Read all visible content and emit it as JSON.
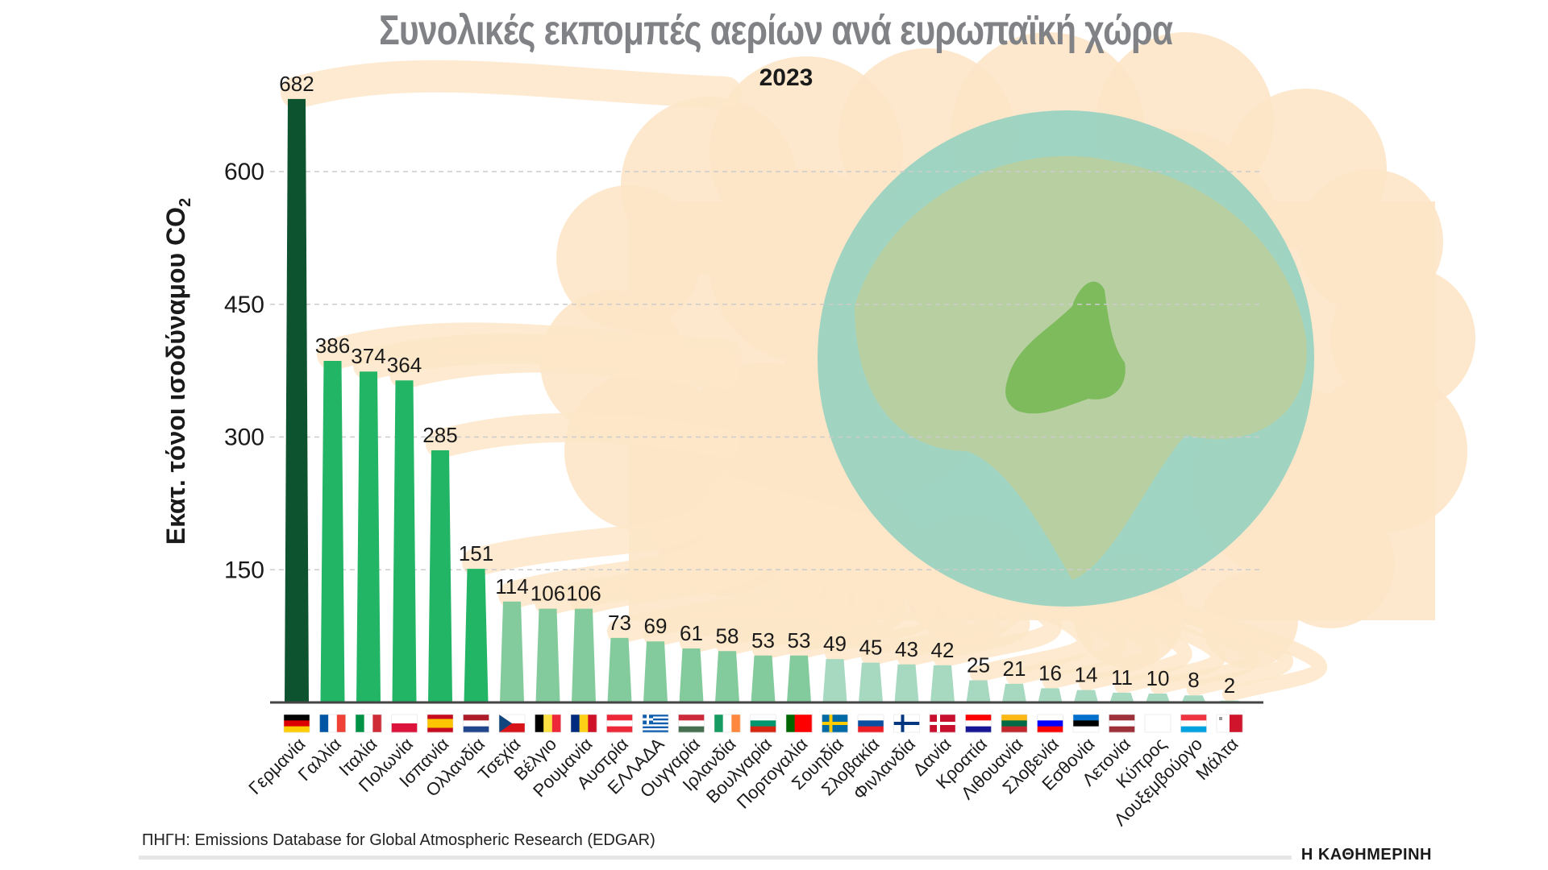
{
  "title": "Συνολικές εκπομπές αερίων ανά ευρωπαϊκή χώρα",
  "subtitle": "2023",
  "source": "ΠΗΓΗ: Emissions Database for Global Atmospheric Research (EDGAR)",
  "logo": "Η ΚΑΘΗΜΕΡΙΝΗ",
  "colors": {
    "dark": "#0e5330",
    "bright": "#22b566",
    "medium": "#83cb9c",
    "light": "#a6d9c0",
    "cloud": "#fde6c8",
    "ocean": "#8fd0c0",
    "land": "#b9cfa0",
    "eu": "#7dbb5c"
  },
  "chart_data": {
    "type": "bar",
    "title": "Συνολικές εκπομπές αερίων ανά ευρωπαϊκή χώρα",
    "subtitle": "2023",
    "ylabel": "Εκατ. τόνοι ισοδύναμου CO",
    "ylabel_sub": "2",
    "ylim": [
      0,
      700
    ],
    "yticks": [
      150,
      300,
      450,
      600
    ],
    "grid": true,
    "categories": [
      "Γερμανία",
      "Γαλλία",
      "Ιταλία",
      "Πολωνία",
      "Ισπανία",
      "Ολλανδία",
      "Τσεχία",
      "Βέλγιο",
      "Ρουμανία",
      "Αυστρία",
      "ΕΛΛΑΔΑ",
      "Ουγγαρία",
      "Ιρλανδία",
      "Βουλγαρία",
      "Πορτογαλία",
      "Σουηδία",
      "Σλοβακία",
      "Φινλανδία",
      "Δανία",
      "Κροατία",
      "Λιθουανία",
      "Σλοβενία",
      "Εσθονία",
      "Λετονία",
      "Κύπρος",
      "Λουξεμβούργο",
      "Μάλτα"
    ],
    "values": [
      682,
      386,
      374,
      364,
      285,
      151,
      114,
      106,
      106,
      73,
      69,
      61,
      58,
      53,
      53,
      49,
      45,
      43,
      42,
      25,
      21,
      16,
      14,
      11,
      10,
      8,
      2
    ],
    "tiers": [
      "dark",
      "bright",
      "bright",
      "bright",
      "bright",
      "bright",
      "medium",
      "medium",
      "medium",
      "medium",
      "medium",
      "medium",
      "medium",
      "medium",
      "medium",
      "light",
      "light",
      "light",
      "light",
      "light",
      "light",
      "light",
      "light",
      "light",
      "light",
      "light",
      "light"
    ],
    "flags": [
      {
        "o": "h",
        "c": [
          "#000000",
          "#dd0000",
          "#ffce00"
        ]
      },
      {
        "o": "v",
        "c": [
          "#0055a4",
          "#ffffff",
          "#ef4135"
        ]
      },
      {
        "o": "v",
        "c": [
          "#009246",
          "#ffffff",
          "#ce2b37"
        ]
      },
      {
        "o": "h",
        "c": [
          "#ffffff",
          "#dc143c"
        ]
      },
      {
        "o": "h",
        "c": [
          "#c60b1e",
          "#ffc400",
          "#ffc400",
          "#c60b1e"
        ]
      },
      {
        "o": "h",
        "c": [
          "#ae1c28",
          "#ffffff",
          "#21468b"
        ]
      },
      {
        "o": "h",
        "c": [
          "#ffffff",
          "#d7141a"
        ],
        "tri": "#11457e"
      },
      {
        "o": "v",
        "c": [
          "#000000",
          "#fae042",
          "#ed2939"
        ]
      },
      {
        "o": "v",
        "c": [
          "#002b7f",
          "#fcd116",
          "#ce1126"
        ]
      },
      {
        "o": "h",
        "c": [
          "#ed2939",
          "#ffffff",
          "#ed2939"
        ]
      },
      {
        "o": "h",
        "c": [
          "#0d5eaf",
          "#ffffff",
          "#0d5eaf",
          "#ffffff",
          "#0d5eaf",
          "#ffffff",
          "#0d5eaf",
          "#ffffff",
          "#0d5eaf"
        ],
        "cross": "#ffffff",
        "crossbg": "#0d5eaf",
        "canton": true
      },
      {
        "o": "h",
        "c": [
          "#ce2939",
          "#ffffff",
          "#477050"
        ]
      },
      {
        "o": "v",
        "c": [
          "#169b62",
          "#ffffff",
          "#ff883e"
        ]
      },
      {
        "o": "h",
        "c": [
          "#ffffff",
          "#00966e",
          "#d62612"
        ]
      },
      {
        "o": "v",
        "c": [
          "#006600",
          "#ff0000",
          "#ff0000"
        ]
      },
      {
        "o": "h",
        "c": [
          "#006aa7"
        ],
        "cross": "#fecc00"
      },
      {
        "o": "h",
        "c": [
          "#ffffff",
          "#0b4ea2",
          "#ee1c25"
        ]
      },
      {
        "o": "h",
        "c": [
          "#ffffff"
        ],
        "cross": "#003580"
      },
      {
        "o": "h",
        "c": [
          "#c8102e"
        ],
        "cross": "#ffffff"
      },
      {
        "o": "h",
        "c": [
          "#ff0000",
          "#ffffff",
          "#171796"
        ]
      },
      {
        "o": "h",
        "c": [
          "#fdb913",
          "#006a44",
          "#c1272d"
        ]
      },
      {
        "o": "h",
        "c": [
          "#ffffff",
          "#0000ff",
          "#ff0000"
        ]
      },
      {
        "o": "h",
        "c": [
          "#0072ce",
          "#000000",
          "#ffffff"
        ]
      },
      {
        "o": "h",
        "c": [
          "#9e3039",
          "#ffffff",
          "#9e3039"
        ]
      },
      {
        "o": "h",
        "c": [
          "#ffffff"
        ]
      },
      {
        "o": "h",
        "c": [
          "#ef3340",
          "#ffffff",
          "#00a3e0"
        ]
      },
      {
        "o": "v",
        "c": [
          "#ffffff",
          "#cf142b"
        ]
      }
    ]
  }
}
